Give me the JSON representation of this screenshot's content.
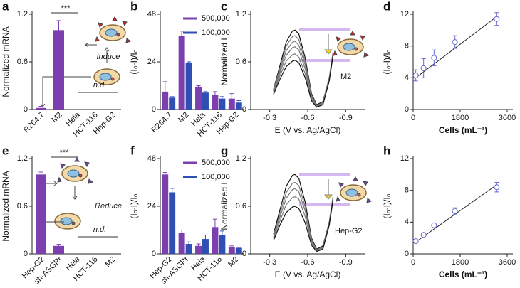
{
  "chart_data": [
    {
      "type": "bar",
      "panel": "a",
      "ylabel": "Normalized mRNA",
      "categories": [
        "R264.7",
        "M2",
        "Hela",
        "HCT-116",
        "Hep-G2"
      ],
      "label_colors": [
        "#000000",
        "#d02020",
        "#000000",
        "#000000",
        "#000000"
      ],
      "values": [
        0.02,
        1.0,
        null,
        null,
        null
      ],
      "errors": [
        0.02,
        0.12,
        null,
        null,
        null
      ],
      "color": "#7b3fb0",
      "ylim": [
        0,
        1.2
      ],
      "yticks": [
        0,
        0.6,
        1.2
      ],
      "annotations": [
        "***",
        "Induce",
        "n.d."
      ]
    },
    {
      "type": "grouped_bar",
      "panel": "b",
      "ylabel": "(I₀-I)/I₀",
      "categories": [
        "R264.7",
        "M2",
        "Hela",
        "HCT-116",
        "Hep-G2"
      ],
      "label_colors": [
        "#000000",
        "#d02020",
        "#000000",
        "#000000",
        "#000000"
      ],
      "series": [
        {
          "name": "500,000",
          "color": "#7b3fb0",
          "values": [
            9,
            37,
            11.5,
            7.5,
            5.5
          ],
          "errors": [
            5,
            2.5,
            0.5,
            1.5,
            2.5
          ]
        },
        {
          "name": "100,000",
          "color": "#2f4fb5",
          "values": [
            6,
            23.5,
            8.5,
            5.5,
            3.5
          ],
          "errors": [
            0.5,
            0.5,
            0.5,
            1,
            1
          ]
        }
      ],
      "ylim": [
        0,
        48
      ],
      "yticks": [
        0,
        24,
        48
      ]
    },
    {
      "type": "line",
      "panel": "c",
      "ylabel": "Normalized I",
      "xlabel": "E (V vs. Ag/AgCl)",
      "x": [
        -0.33,
        -0.38,
        -0.43,
        -0.48,
        -0.5,
        -0.53,
        -0.58,
        -0.63,
        -0.67,
        -0.72,
        -0.77,
        -0.8
      ],
      "series": [
        {
          "color": "#111111",
          "values": [
            0.25,
            0.55,
            0.85,
            0.99,
            1.0,
            0.95,
            0.65,
            0.2,
            0.06,
            0.1,
            0.4,
            0.72
          ]
        },
        {
          "color": "#777777",
          "values": [
            0.24,
            0.52,
            0.8,
            0.92,
            0.93,
            0.88,
            0.6,
            0.18,
            0.05,
            0.09,
            0.4,
            0.72
          ]
        },
        {
          "color": "#777777",
          "values": [
            0.23,
            0.49,
            0.74,
            0.85,
            0.86,
            0.81,
            0.56,
            0.16,
            0.05,
            0.08,
            0.39,
            0.71
          ]
        },
        {
          "color": "#777777",
          "values": [
            0.22,
            0.46,
            0.68,
            0.78,
            0.79,
            0.75,
            0.51,
            0.15,
            0.04,
            0.08,
            0.38,
            0.7
          ]
        },
        {
          "color": "#777777",
          "values": [
            0.2,
            0.42,
            0.61,
            0.69,
            0.7,
            0.66,
            0.45,
            0.13,
            0.04,
            0.07,
            0.37,
            0.69
          ]
        },
        {
          "color": "#111111",
          "values": [
            0.19,
            0.38,
            0.54,
            0.61,
            0.62,
            0.59,
            0.4,
            0.11,
            0.03,
            0.06,
            0.36,
            0.68
          ]
        }
      ],
      "xlim": [
        -0.15,
        -1.05
      ],
      "xticks": [
        -0.3,
        -0.6,
        -0.9
      ],
      "ylim": [
        0,
        1.2
      ],
      "yticks": [
        0,
        0.6,
        1.2
      ],
      "annotations": [
        "M2"
      ]
    },
    {
      "type": "scatter",
      "panel": "d",
      "ylabel": "(I₀-I)/I₀",
      "xlabel": "Cells (mL⁻¹)",
      "x": [
        100,
        400,
        800,
        1600,
        3200
      ],
      "values": [
        4.3,
        5.2,
        6.5,
        8.5,
        11.4
      ],
      "errors": [
        0.7,
        1.2,
        1.0,
        0.8,
        0.8
      ],
      "color": "#6a6ad0",
      "fit": {
        "x": [
          100,
          3200
        ],
        "y": [
          4.0,
          11.7
        ]
      },
      "xlim": [
        0,
        3600
      ],
      "xticks": [
        0,
        1800,
        3600
      ],
      "ylim": [
        0,
        12
      ],
      "yticks": [
        0,
        4,
        8,
        12
      ]
    },
    {
      "type": "bar",
      "panel": "e",
      "ylabel": "Normalized mRNA",
      "categories": [
        "Hep-G2",
        "sh-ASGPr",
        "Hela",
        "HCT-116",
        "M2"
      ],
      "label_colors": [
        "#d02020",
        "#000000",
        "#000000",
        "#000000",
        "#000000"
      ],
      "values": [
        1.0,
        0.1,
        null,
        null,
        null
      ],
      "errors": [
        0.03,
        0.02,
        null,
        null,
        null
      ],
      "color": "#7b3fb0",
      "ylim": [
        0,
        1.2
      ],
      "yticks": [
        0,
        0.6,
        1.2
      ],
      "annotations": [
        "***",
        "Reduce",
        "n.d."
      ]
    },
    {
      "type": "grouped_bar",
      "panel": "f",
      "ylabel": "(I₀-I)/I₀",
      "categories": [
        "Hep-G2",
        "sh-ASGPr",
        "Hela",
        "HCT-116",
        "M2"
      ],
      "label_colors": [
        "#d02020",
        "#000000",
        "#000000",
        "#000000",
        "#000000"
      ],
      "series": [
        {
          "name": "500,000",
          "color": "#7b3fb0",
          "values": [
            40,
            10.5,
            4,
            13.5,
            3.5
          ],
          "errors": [
            1,
            1.5,
            1,
            4,
            0.5
          ]
        },
        {
          "name": "100,000",
          "color": "#2f4fb5",
          "values": [
            31,
            5,
            7.5,
            9.5,
            3
          ],
          "errors": [
            2,
            1,
            2,
            2,
            0.3
          ]
        }
      ],
      "ylim": [
        0,
        48
      ],
      "yticks": [
        0,
        24,
        48
      ]
    },
    {
      "type": "line",
      "panel": "g",
      "ylabel": "Normalized I",
      "xlabel": "E (V vs. Ag/AgCl)",
      "x": [
        -0.33,
        -0.38,
        -0.43,
        -0.48,
        -0.5,
        -0.53,
        -0.58,
        -0.63,
        -0.67,
        -0.72,
        -0.77,
        -0.8
      ],
      "series": [
        {
          "color": "#111111",
          "values": [
            0.25,
            0.55,
            0.85,
            0.99,
            1.0,
            0.95,
            0.65,
            0.2,
            0.06,
            0.1,
            0.4,
            0.72
          ]
        },
        {
          "color": "#777777",
          "values": [
            0.23,
            0.5,
            0.77,
            0.89,
            0.9,
            0.86,
            0.59,
            0.18,
            0.05,
            0.09,
            0.39,
            0.71
          ]
        },
        {
          "color": "#777777",
          "values": [
            0.21,
            0.46,
            0.7,
            0.81,
            0.82,
            0.78,
            0.54,
            0.16,
            0.05,
            0.08,
            0.38,
            0.7
          ]
        },
        {
          "color": "#777777",
          "values": [
            0.19,
            0.41,
            0.62,
            0.71,
            0.72,
            0.69,
            0.47,
            0.14,
            0.04,
            0.07,
            0.37,
            0.69
          ]
        },
        {
          "color": "#111111",
          "values": [
            0.17,
            0.36,
            0.52,
            0.59,
            0.6,
            0.57,
            0.39,
            0.11,
            0.03,
            0.06,
            0.36,
            0.68
          ]
        }
      ],
      "xlim": [
        -0.15,
        -1.05
      ],
      "xticks": [
        -0.3,
        -0.6,
        -0.9
      ],
      "ylim": [
        0,
        1.2
      ],
      "yticks": [
        0,
        0.6,
        1.2
      ],
      "annotations": [
        "Hep-G2"
      ]
    },
    {
      "type": "scatter",
      "panel": "h",
      "ylabel": "(I₀-I)/I₀",
      "xlabel": "Cells (mL⁻¹)",
      "x": [
        100,
        400,
        800,
        1600,
        3200
      ],
      "values": [
        1.6,
        2.4,
        3.6,
        5.4,
        8.4
      ],
      "errors": [
        0.2,
        0.2,
        0.2,
        0.4,
        0.6
      ],
      "color": "#6a6ad0",
      "fit": {
        "x": [
          100,
          3200
        ],
        "y": [
          1.5,
          8.7
        ]
      },
      "xlim": [
        0,
        3600
      ],
      "xticks": [
        0,
        1800,
        3600
      ],
      "ylim": [
        0,
        12
      ],
      "yticks": [
        0,
        4,
        8,
        12
      ]
    }
  ]
}
